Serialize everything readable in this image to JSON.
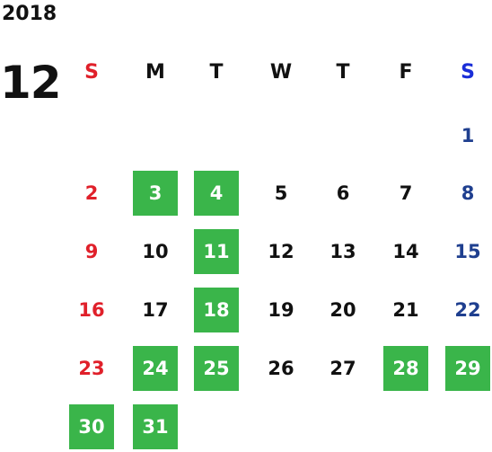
{
  "calendar": {
    "year": "2018",
    "month": "12",
    "weekdays": [
      "S",
      "M",
      "T",
      "W",
      "T",
      "F",
      "S"
    ],
    "days": [
      "1",
      "2",
      "3",
      "4",
      "5",
      "6",
      "7",
      "8",
      "9",
      "10",
      "11",
      "12",
      "13",
      "14",
      "15",
      "16",
      "17",
      "18",
      "19",
      "20",
      "21",
      "22",
      "23",
      "24",
      "25",
      "26",
      "27",
      "28",
      "29",
      "30",
      "31"
    ],
    "highlighted_days": [
      "3",
      "4",
      "11",
      "18",
      "24",
      "25",
      "28",
      "29",
      "30",
      "31"
    ],
    "highlight_color": "#3ab54a",
    "sunday_color": "#e0202a",
    "saturday_color": "#1f3f8f"
  }
}
